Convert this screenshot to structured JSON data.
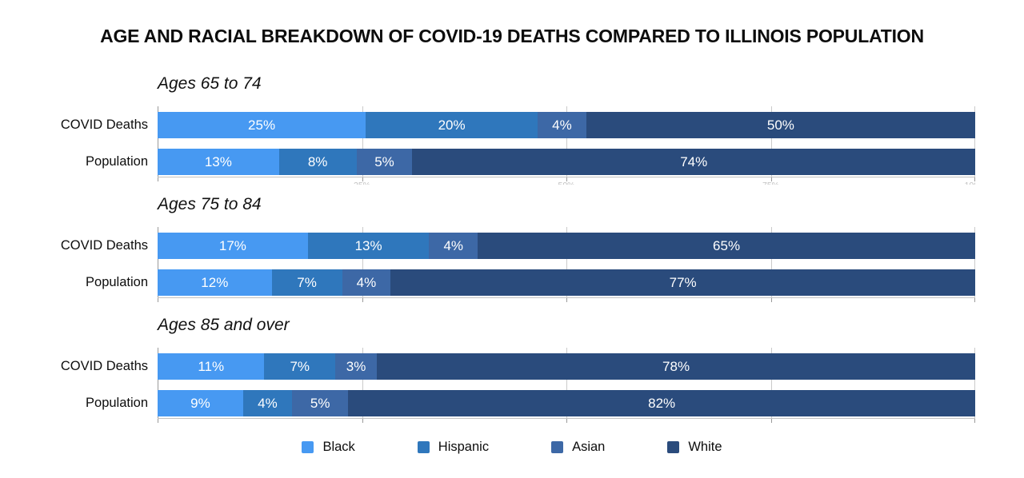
{
  "title": "AGE AND RACIAL BREAKDOWN OF COVID-19 DEATHS COMPARED TO ILLINOIS POPULATION",
  "chart_data": {
    "type": "bar",
    "stacked": true,
    "orientation": "horizontal",
    "title": "AGE AND RACIAL BREAKDOWN OF COVID-19 DEATHS COMPARED TO ILLINOIS POPULATION",
    "value_format": "percent",
    "xlim": [
      0,
      100
    ],
    "grid": true,
    "legend_position": "bottom",
    "axis_tick_labels": [
      "25%",
      "50%",
      "75%",
      "100%"
    ],
    "series": [
      {
        "name": "Black",
        "color": "#4799F2"
      },
      {
        "name": "Hispanic",
        "color": "#2F77BC"
      },
      {
        "name": "Asian",
        "color": "#3D68A6"
      },
      {
        "name": "White",
        "color": "#2A4B7C"
      }
    ],
    "groups": [
      {
        "label": "Ages 65 to 74",
        "rows": [
          {
            "label": "COVID Deaths",
            "values": [
              25,
              20,
              4,
              50
            ]
          },
          {
            "label": "Population",
            "values": [
              13,
              8,
              5,
              74
            ]
          }
        ]
      },
      {
        "label": "Ages 75 to 84",
        "rows": [
          {
            "label": "COVID Deaths",
            "values": [
              17,
              13,
              4,
              65
            ]
          },
          {
            "label": "Population",
            "values": [
              12,
              7,
              4,
              77
            ]
          }
        ]
      },
      {
        "label": "Ages 85 and over",
        "rows": [
          {
            "label": "COVID Deaths",
            "values": [
              11,
              7,
              3,
              78
            ]
          },
          {
            "label": "Population",
            "values": [
              9,
              4,
              5,
              82
            ]
          }
        ]
      }
    ]
  }
}
